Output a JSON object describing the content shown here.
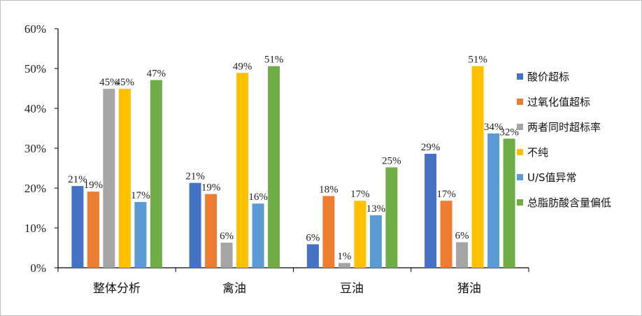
{
  "chart_data": {
    "type": "bar",
    "title": "",
    "xlabel": "",
    "ylabel": "",
    "ylim": [
      0,
      60
    ],
    "y_ticks": [
      "0%",
      "10%",
      "20%",
      "30%",
      "40%",
      "50%",
      "60%"
    ],
    "grid": false,
    "legend_position": "right",
    "categories": [
      "整体分析",
      "禽油",
      "豆油",
      "猪油"
    ],
    "series": [
      {
        "name": "酸价超标",
        "color": "#4472C4",
        "values": [
          20.5,
          21.3,
          5.9,
          28.6
        ],
        "labels": [
          "21%",
          "21%",
          "6%",
          "29%"
        ]
      },
      {
        "name": "过氧化值超标",
        "color": "#ED7D31",
        "values": [
          19.1,
          18.5,
          18.0,
          16.8
        ],
        "labels": [
          "19%",
          "19%",
          "18%",
          "17%"
        ]
      },
      {
        "name": "两者同时超标率",
        "color": "#A5A5A5",
        "values": [
          44.9,
          6.3,
          1.2,
          6.4
        ],
        "labels": [
          "45%",
          "6%",
          "1%",
          "6%"
        ]
      },
      {
        "name": "不纯",
        "color": "#FFC000",
        "values": [
          44.9,
          48.9,
          16.8,
          50.6
        ],
        "labels": [
          "45%",
          "49%",
          "17%",
          "51%"
        ]
      },
      {
        "name": "U/S值异常",
        "color": "#5B9BD5",
        "values": [
          16.5,
          16.1,
          13.2,
          33.7
        ],
        "labels": [
          "17%",
          "16%",
          "13%",
          "34%"
        ]
      },
      {
        "name": "总脂肪酸含量偏低",
        "color": "#70AD47",
        "values": [
          47.1,
          50.6,
          25.2,
          32.4
        ],
        "labels": [
          "47%",
          "51%",
          "25%",
          "32%"
        ]
      }
    ]
  }
}
